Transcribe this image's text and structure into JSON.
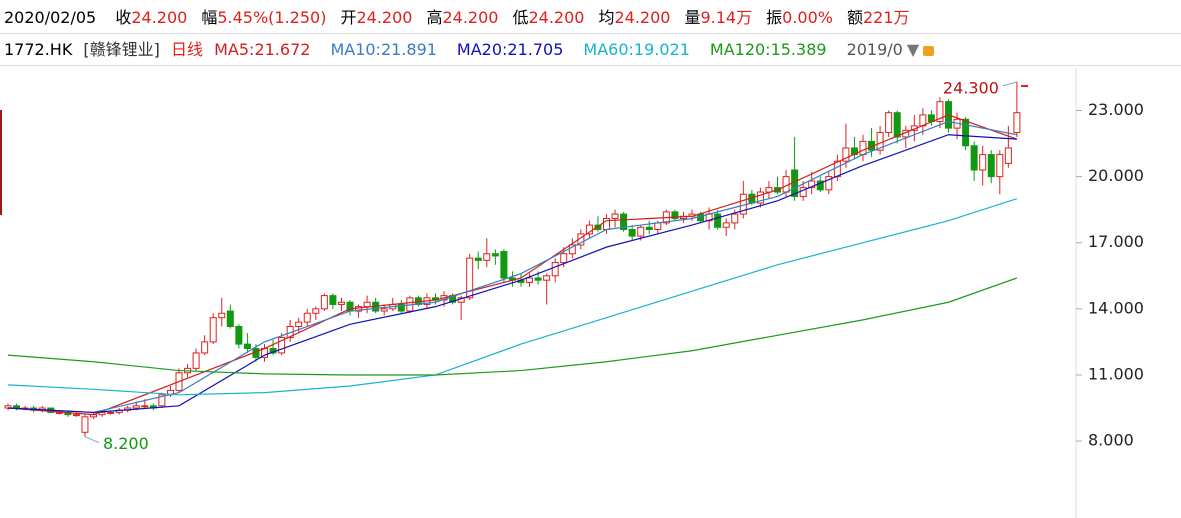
{
  "header": {
    "date": "2020/02/05",
    "items": [
      {
        "label": "收",
        "value": "24.200"
      },
      {
        "label": "幅",
        "value": "5.45%(1.250)"
      },
      {
        "label": "开",
        "value": "24.200"
      },
      {
        "label": "高",
        "value": "24.200"
      },
      {
        "label": "低",
        "value": "24.200"
      },
      {
        "label": "均",
        "value": "24.200"
      },
      {
        "label": "量",
        "value": "9.14万"
      },
      {
        "label": "振",
        "value": "0.00%"
      },
      {
        "label": "额",
        "value": "221万"
      }
    ],
    "code": "1772.HK",
    "name": "[赣锋锂业]",
    "period": "日线",
    "range": "2019/0"
  },
  "chart_data": {
    "type": "candlestick",
    "up_color": "#e0201c",
    "down_color": "#119911",
    "candles": [
      [
        9.5,
        9.7,
        9.4,
        9.6
      ],
      [
        9.6,
        9.7,
        9.4,
        9.5
      ],
      [
        9.5,
        9.6,
        9.4,
        9.5
      ],
      [
        9.5,
        9.6,
        9.3,
        9.4
      ],
      [
        9.4,
        9.6,
        9.3,
        9.5
      ],
      [
        9.5,
        9.5,
        9.3,
        9.3
      ],
      [
        9.3,
        9.4,
        9.2,
        9.3
      ],
      [
        9.3,
        9.4,
        9.1,
        9.2
      ],
      [
        9.2,
        9.3,
        9.1,
        9.2
      ],
      [
        8.4,
        9.2,
        8.2,
        9.1
      ],
      [
        9.1,
        9.3,
        9.0,
        9.2
      ],
      [
        9.2,
        9.3,
        9.1,
        9.3
      ],
      [
        9.3,
        9.4,
        9.2,
        9.3
      ],
      [
        9.3,
        9.5,
        9.2,
        9.4
      ],
      [
        9.4,
        9.6,
        9.3,
        9.5
      ],
      [
        9.5,
        9.8,
        9.4,
        9.6
      ],
      [
        9.6,
        9.9,
        9.5,
        9.6
      ],
      [
        9.6,
        9.7,
        9.4,
        9.5
      ],
      [
        9.6,
        10.2,
        9.5,
        10.1
      ],
      [
        10.1,
        10.5,
        10.0,
        10.3
      ],
      [
        10.3,
        11.3,
        10.2,
        11.1
      ],
      [
        11.1,
        11.5,
        10.9,
        11.3
      ],
      [
        11.3,
        12.2,
        11.2,
        12.0
      ],
      [
        12.0,
        12.8,
        11.9,
        12.5
      ],
      [
        12.5,
        13.8,
        12.4,
        13.6
      ],
      [
        13.6,
        14.5,
        13.2,
        13.8
      ],
      [
        13.9,
        14.2,
        13.1,
        13.2
      ],
      [
        13.2,
        13.3,
        12.2,
        12.4
      ],
      [
        12.4,
        12.9,
        12.0,
        12.2
      ],
      [
        12.2,
        12.4,
        11.6,
        11.8
      ],
      [
        11.8,
        12.4,
        11.6,
        12.2
      ],
      [
        12.2,
        12.6,
        11.9,
        12.0
      ],
      [
        12.0,
        12.9,
        11.9,
        12.7
      ],
      [
        12.7,
        13.5,
        12.5,
        13.2
      ],
      [
        13.2,
        13.6,
        12.9,
        13.4
      ],
      [
        13.4,
        14.0,
        13.2,
        13.8
      ],
      [
        13.8,
        14.1,
        13.5,
        14.0
      ],
      [
        14.0,
        14.7,
        13.9,
        14.6
      ],
      [
        14.6,
        14.7,
        14.0,
        14.2
      ],
      [
        14.2,
        14.5,
        13.9,
        14.3
      ],
      [
        14.3,
        14.4,
        13.7,
        13.9
      ],
      [
        13.9,
        14.2,
        13.6,
        14.1
      ],
      [
        14.1,
        14.6,
        13.8,
        14.3
      ],
      [
        14.3,
        14.5,
        13.8,
        13.9
      ],
      [
        13.9,
        14.2,
        13.7,
        14.0
      ],
      [
        14.0,
        14.5,
        13.9,
        14.2
      ],
      [
        14.2,
        14.4,
        13.8,
        13.9
      ],
      [
        13.9,
        14.6,
        13.8,
        14.5
      ],
      [
        14.5,
        14.6,
        14.1,
        14.2
      ],
      [
        14.2,
        14.7,
        14.0,
        14.5
      ],
      [
        14.5,
        14.7,
        14.2,
        14.4
      ],
      [
        14.4,
        14.8,
        14.1,
        14.6
      ],
      [
        14.6,
        14.7,
        14.2,
        14.3
      ],
      [
        14.3,
        14.6,
        13.5,
        14.5
      ],
      [
        14.5,
        16.5,
        14.4,
        16.3
      ],
      [
        16.3,
        16.6,
        15.8,
        16.2
      ],
      [
        16.2,
        17.2,
        15.9,
        16.5
      ],
      [
        16.5,
        16.7,
        16.0,
        16.4
      ],
      [
        16.6,
        16.7,
        15.2,
        15.4
      ],
      [
        15.4,
        15.7,
        15.0,
        15.3
      ],
      [
        15.3,
        15.6,
        15.0,
        15.2
      ],
      [
        15.2,
        15.6,
        15.0,
        15.4
      ],
      [
        15.4,
        15.7,
        15.1,
        15.3
      ],
      [
        15.3,
        15.6,
        14.2,
        15.5
      ],
      [
        15.5,
        16.3,
        15.2,
        16.1
      ],
      [
        16.1,
        16.8,
        15.9,
        16.5
      ],
      [
        16.5,
        17.2,
        16.3,
        16.9
      ],
      [
        16.9,
        17.6,
        16.7,
        17.4
      ],
      [
        17.4,
        18.0,
        17.2,
        17.8
      ],
      [
        17.8,
        18.2,
        17.5,
        17.6
      ],
      [
        17.6,
        18.3,
        17.4,
        18.1
      ],
      [
        18.1,
        18.5,
        17.7,
        18.3
      ],
      [
        18.3,
        18.4,
        17.5,
        17.6
      ],
      [
        17.6,
        17.8,
        17.1,
        17.3
      ],
      [
        17.3,
        17.8,
        17.1,
        17.7
      ],
      [
        17.7,
        18.0,
        17.4,
        17.6
      ],
      [
        17.6,
        18.0,
        17.4,
        17.9
      ],
      [
        17.9,
        18.5,
        17.8,
        18.4
      ],
      [
        18.4,
        18.5,
        18.0,
        18.1
      ],
      [
        18.1,
        18.4,
        17.9,
        18.2
      ],
      [
        18.2,
        18.5,
        18.0,
        18.3
      ],
      [
        18.3,
        18.4,
        17.9,
        18.0
      ],
      [
        18.0,
        18.6,
        17.6,
        18.3
      ],
      [
        18.3,
        18.5,
        17.6,
        17.7
      ],
      [
        17.7,
        18.1,
        17.3,
        17.9
      ],
      [
        17.9,
        18.5,
        17.6,
        18.3
      ],
      [
        18.3,
        19.8,
        18.1,
        19.2
      ],
      [
        19.2,
        19.4,
        18.7,
        18.8
      ],
      [
        18.8,
        19.5,
        18.6,
        19.3
      ],
      [
        19.3,
        19.8,
        19.0,
        19.5
      ],
      [
        19.5,
        20.0,
        19.2,
        19.3
      ],
      [
        19.3,
        20.3,
        19.1,
        20.0
      ],
      [
        20.3,
        21.8,
        18.9,
        19.1
      ],
      [
        19.1,
        19.8,
        18.9,
        19.5
      ],
      [
        19.5,
        20.2,
        19.2,
        19.8
      ],
      [
        19.8,
        20.0,
        19.3,
        19.4
      ],
      [
        19.4,
        20.2,
        19.2,
        20.0
      ],
      [
        20.0,
        21.0,
        19.8,
        20.7
      ],
      [
        20.7,
        22.4,
        20.4,
        21.3
      ],
      [
        21.3,
        21.8,
        20.8,
        21.0
      ],
      [
        21.0,
        21.9,
        20.7,
        21.6
      ],
      [
        21.6,
        22.2,
        20.9,
        21.2
      ],
      [
        21.2,
        22.3,
        21.0,
        22.0
      ],
      [
        22.0,
        23.0,
        21.8,
        22.9
      ],
      [
        22.9,
        23.0,
        21.5,
        21.8
      ],
      [
        21.8,
        22.3,
        21.3,
        22.1
      ],
      [
        22.1,
        22.8,
        21.6,
        22.3
      ],
      [
        22.3,
        23.1,
        21.9,
        22.8
      ],
      [
        22.8,
        23.0,
        22.3,
        22.5
      ],
      [
        22.5,
        23.6,
        22.2,
        23.4
      ],
      [
        23.4,
        23.5,
        22.0,
        22.2
      ],
      [
        22.2,
        22.9,
        21.7,
        22.6
      ],
      [
        22.6,
        22.7,
        21.2,
        21.4
      ],
      [
        21.4,
        21.6,
        19.8,
        20.3
      ],
      [
        20.3,
        21.4,
        19.6,
        21.0
      ],
      [
        21.0,
        21.2,
        19.7,
        20.0
      ],
      [
        20.0,
        21.2,
        19.2,
        21.0
      ],
      [
        20.6,
        22.3,
        20.4,
        21.3
      ],
      [
        22.0,
        24.3,
        21.8,
        22.9
      ]
    ],
    "x": [
      0,
      10,
      20,
      30,
      40,
      50,
      60,
      70,
      80,
      90,
      100,
      110,
      118
    ],
    "series": [
      {
        "name": "MA5:21.672",
        "color": "#d0201e",
        "values": [
          9.5,
          9.2,
          10.7,
          12.2,
          14.0,
          14.4,
          15.4,
          18.0,
          18.2,
          19.4,
          21.2,
          22.8,
          21.7
        ]
      },
      {
        "name": "MA10:21.891",
        "color": "#3a7cc0",
        "values": [
          9.5,
          9.3,
          10.2,
          12.5,
          13.9,
          14.3,
          15.6,
          17.6,
          18.1,
          19.1,
          21.0,
          22.5,
          21.9
        ]
      },
      {
        "name": "MA20:21.705",
        "color": "#1010b8",
        "values": [
          9.5,
          9.3,
          9.6,
          11.9,
          13.3,
          14.1,
          15.3,
          16.8,
          17.8,
          18.9,
          20.5,
          21.9,
          21.7
        ]
      },
      {
        "name": "MA60:19.021",
        "color": "#17b4cc",
        "values": [
          10.55,
          10.35,
          10.1,
          10.2,
          10.5,
          11.0,
          12.4,
          13.6,
          14.8,
          16.0,
          17.0,
          18.0,
          19.0
        ]
      },
      {
        "name": "MA120:15.389",
        "color": "#1c9a1c",
        "values": [
          11.9,
          11.6,
          11.2,
          11.05,
          11.0,
          11.0,
          11.2,
          11.6,
          12.1,
          12.8,
          13.5,
          14.3,
          15.4
        ]
      }
    ],
    "annotations": [
      {
        "text": "24.300",
        "color": "#c01010"
      },
      {
        "text": "8.200",
        "color": "#119911"
      }
    ],
    "ylim": [
      5.1,
      25.2
    ],
    "yticks": [
      {
        "value": 23,
        "label": "23.000"
      },
      {
        "value": 20,
        "label": "20.000"
      },
      {
        "value": 17,
        "label": "17.000"
      },
      {
        "value": 14,
        "label": "14.000"
      },
      {
        "value": 11,
        "label": "11.000"
      },
      {
        "value": 8,
        "label": "8.000"
      }
    ]
  }
}
